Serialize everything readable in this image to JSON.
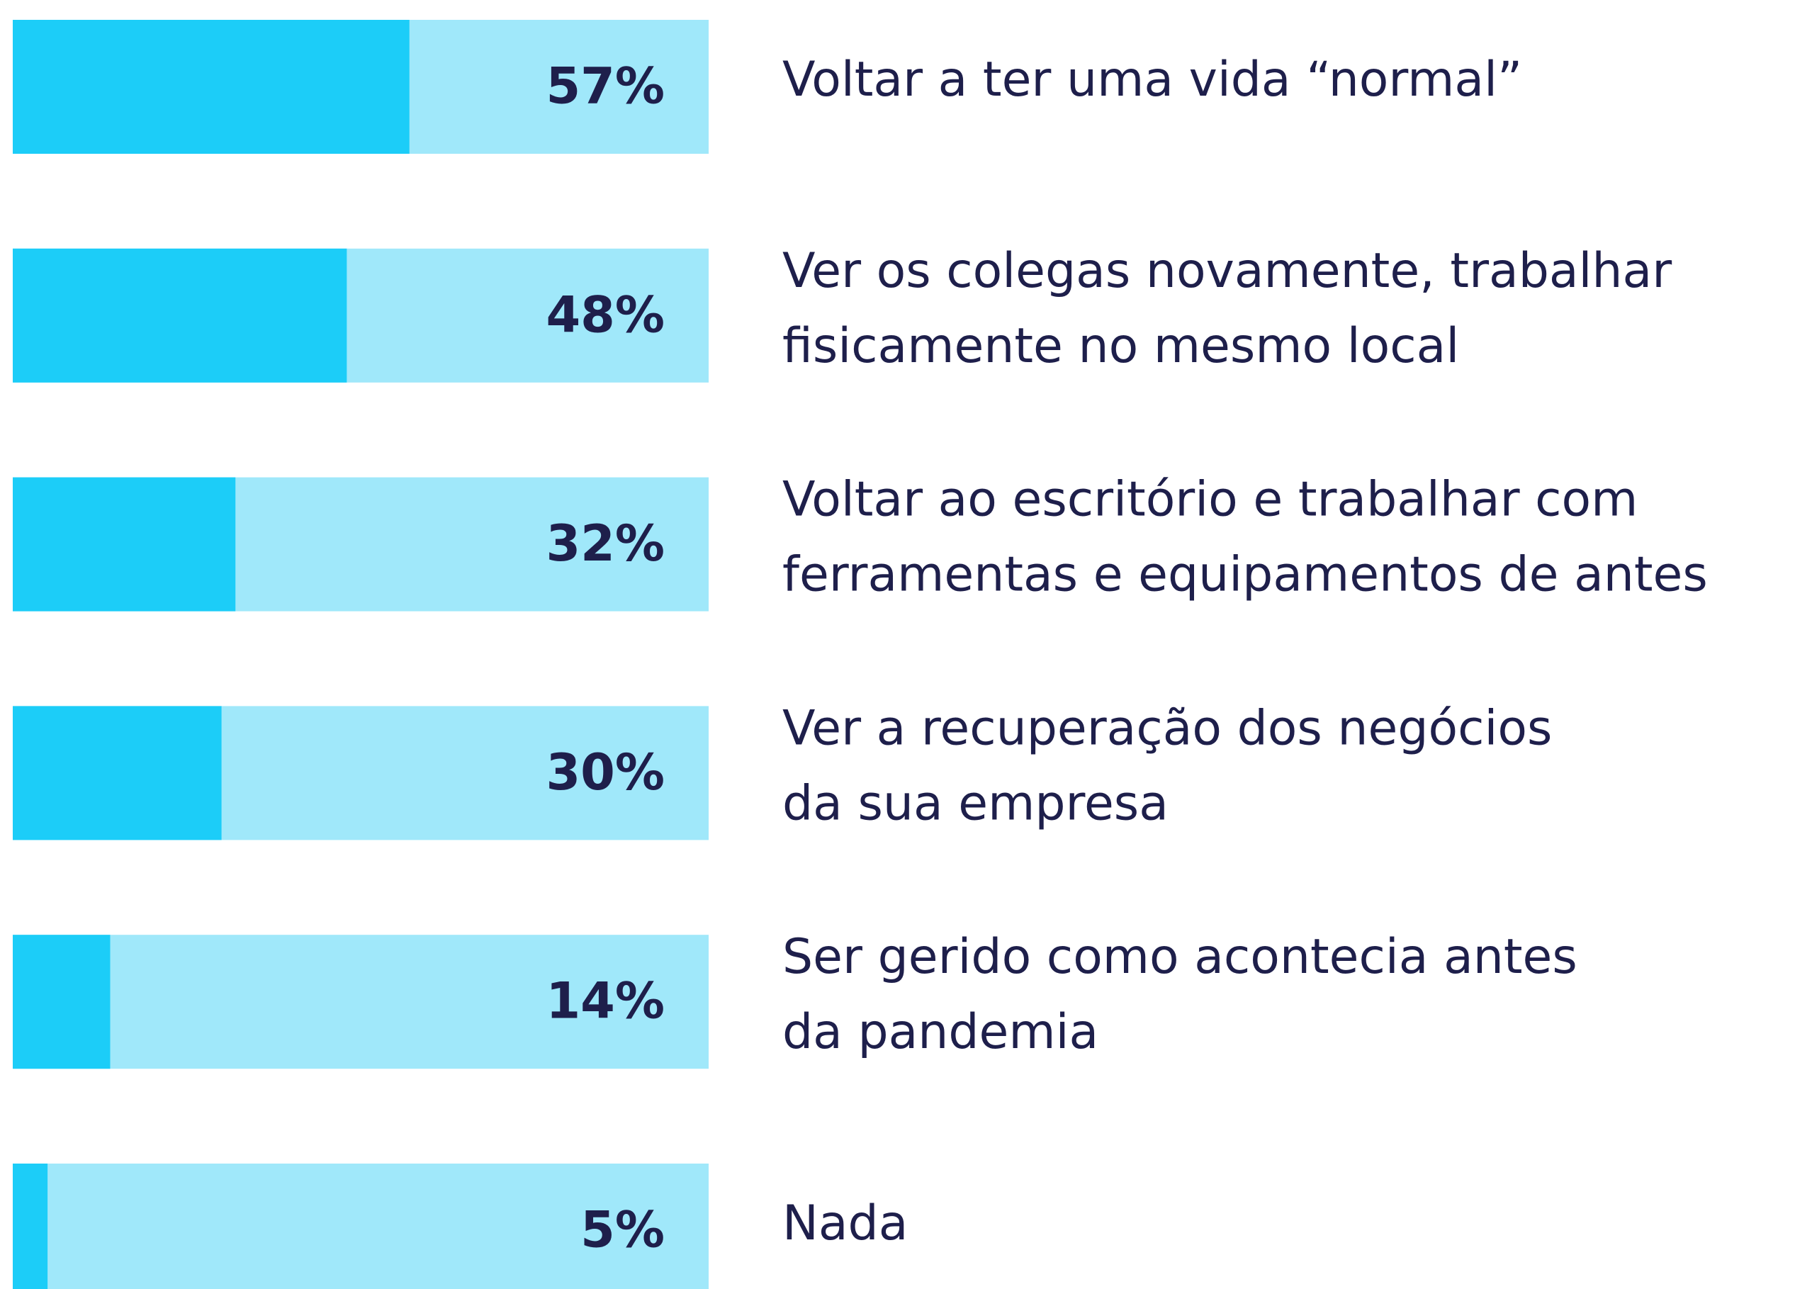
{
  "chart_data": {
    "type": "bar",
    "orientation": "horizontal",
    "categories": [
      [
        "Voltar a ter uma vida “normal”"
      ],
      [
        "Ver os colegas novamente, trabalhar",
        "fisicamente no mesmo local"
      ],
      [
        "Voltar ao escritório e trabalhar com",
        "ferramentas e equipamentos de antes"
      ],
      [
        "Ver a recuperação dos negócios",
        "da sua empresa"
      ],
      [
        "Ser gerido como acontecia antes",
        "da pandemia"
      ],
      [
        "Nada"
      ]
    ],
    "values": [
      57,
      48,
      32,
      30,
      14,
      5
    ],
    "value_labels": [
      "57%",
      "48%",
      "32%",
      "30%",
      "14%",
      "5%"
    ],
    "xlim": [
      0,
      100
    ],
    "color": "#1ccdf8",
    "background_color": "#a0e8fa"
  }
}
